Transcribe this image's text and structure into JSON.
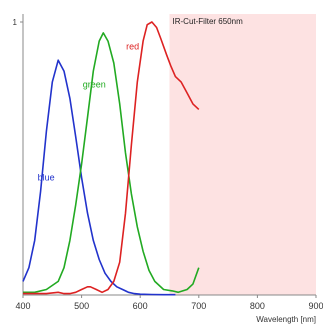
{
  "chart_data": {
    "type": "line",
    "title": "",
    "xlabel": "Wavelength [nm]",
    "ylabel": "",
    "xlim": [
      400,
      900
    ],
    "ylim": [
      0,
      1
    ],
    "x_ticks": [
      400,
      500,
      600,
      700,
      800,
      900
    ],
    "x_tick_labels": [
      "400",
      "500",
      "600",
      "700",
      "800",
      "900"
    ],
    "y_tick_labels": [
      "1"
    ],
    "grid": false,
    "shaded_region": {
      "x_from": 650,
      "x_to": 900,
      "color": "#fde2e2"
    },
    "annotation": "IR-Cut-Filter 650nm",
    "series": [
      {
        "name": "blue",
        "color": "#2233cc",
        "x": [
          400,
          410,
          420,
          430,
          440,
          450,
          460,
          470,
          480,
          490,
          500,
          510,
          520,
          530,
          540,
          550,
          560,
          570,
          580,
          590,
          600,
          620,
          640,
          660
        ],
        "y": [
          0.05,
          0.1,
          0.2,
          0.38,
          0.6,
          0.78,
          0.86,
          0.82,
          0.72,
          0.58,
          0.43,
          0.3,
          0.2,
          0.13,
          0.08,
          0.05,
          0.03,
          0.02,
          0.01,
          0.005,
          0.003,
          0.002,
          0.001,
          0.001
        ]
      },
      {
        "name": "green",
        "color": "#22aa22",
        "x": [
          400,
          420,
          440,
          460,
          470,
          480,
          490,
          500,
          510,
          520,
          530,
          537,
          545,
          555,
          565,
          575,
          585,
          595,
          605,
          615,
          625,
          640,
          655,
          665,
          680,
          690,
          700
        ],
        "y": [
          0.01,
          0.01,
          0.02,
          0.05,
          0.1,
          0.2,
          0.33,
          0.48,
          0.65,
          0.82,
          0.93,
          0.96,
          0.93,
          0.85,
          0.7,
          0.52,
          0.37,
          0.25,
          0.16,
          0.09,
          0.05,
          0.02,
          0.015,
          0.01,
          0.02,
          0.04,
          0.1
        ]
      },
      {
        "name": "red",
        "color": "#dd2222",
        "x": [
          400,
          440,
          460,
          470,
          480,
          490,
          500,
          510,
          515,
          525,
          535,
          545,
          555,
          565,
          575,
          585,
          595,
          605,
          612,
          620,
          628,
          635,
          645,
          652,
          660,
          670,
          680,
          690,
          700
        ],
        "y": [
          0.005,
          0.005,
          0.01,
          0.005,
          0.005,
          0.01,
          0.02,
          0.03,
          0.03,
          0.02,
          0.01,
          0.02,
          0.05,
          0.12,
          0.3,
          0.55,
          0.78,
          0.93,
          0.99,
          1.0,
          0.98,
          0.94,
          0.88,
          0.84,
          0.8,
          0.78,
          0.74,
          0.7,
          0.68
        ]
      }
    ],
    "series_label_positions": [
      {
        "name": "blue",
        "x": 425,
        "y": 0.42
      },
      {
        "name": "green",
        "x": 502,
        "y": 0.76
      },
      {
        "name": "red",
        "x": 576,
        "y": 0.9
      }
    ]
  }
}
